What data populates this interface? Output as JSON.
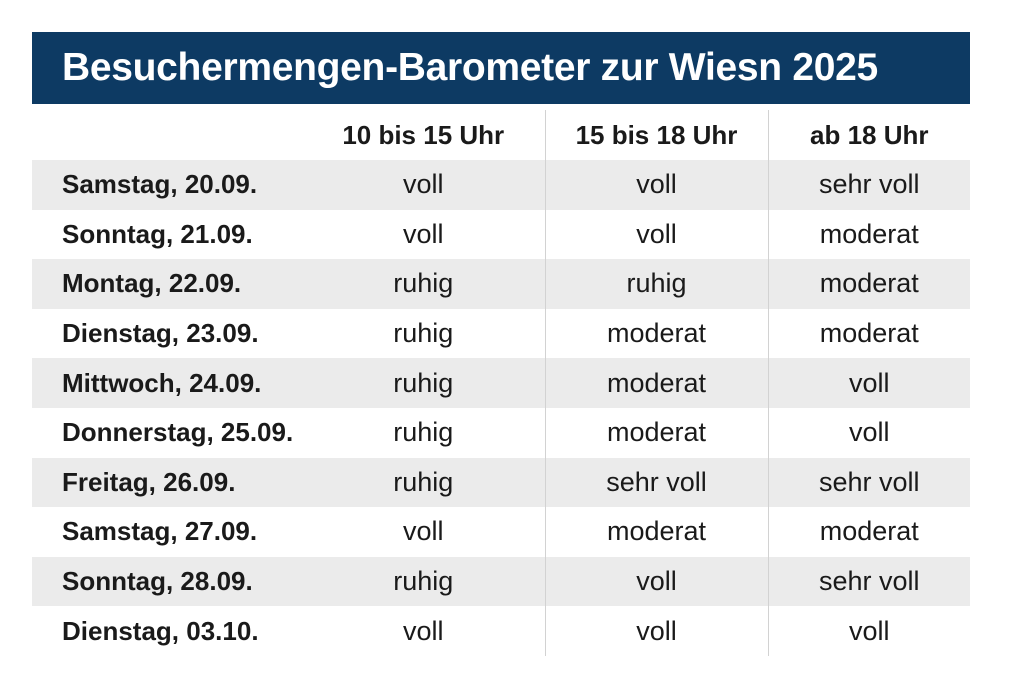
{
  "title": "Besuchermengen-Barometer zur Wiesn 2025",
  "columns": [
    "",
    "10 bis 15 Uhr",
    "15 bis 18 Uhr",
    "ab 18 Uhr"
  ],
  "rows": [
    {
      "day": "Samstag, 20.09.",
      "slot1": "voll",
      "slot2": "voll",
      "slot3": "sehr voll"
    },
    {
      "day": "Sonntag, 21.09.",
      "slot1": "voll",
      "slot2": "voll",
      "slot3": "moderat"
    },
    {
      "day": "Montag, 22.09.",
      "slot1": "ruhig",
      "slot2": "ruhig",
      "slot3": "moderat"
    },
    {
      "day": "Dienstag, 23.09.",
      "slot1": "ruhig",
      "slot2": "moderat",
      "slot3": "moderat"
    },
    {
      "day": "Mittwoch, 24.09.",
      "slot1": "ruhig",
      "slot2": "moderat",
      "slot3": "voll"
    },
    {
      "day": "Donnerstag, 25.09.",
      "slot1": "ruhig",
      "slot2": "moderat",
      "slot3": "voll"
    },
    {
      "day": "Freitag, 26.09.",
      "slot1": "ruhig",
      "slot2": "sehr voll",
      "slot3": "sehr voll"
    },
    {
      "day": "Samstag, 27.09.",
      "slot1": "voll",
      "slot2": "moderat",
      "slot3": "moderat"
    },
    {
      "day": "Sonntag, 28.09.",
      "slot1": "ruhig",
      "slot2": "voll",
      "slot3": "sehr voll"
    },
    {
      "day": "Dienstag, 03.10.",
      "slot1": "voll",
      "slot2": "voll",
      "slot3": "voll"
    }
  ],
  "colors": {
    "title_background": "#0d3a63",
    "title_text": "#ffffff",
    "stripe": "#ebebeb",
    "divider": "#d2d2d2"
  }
}
